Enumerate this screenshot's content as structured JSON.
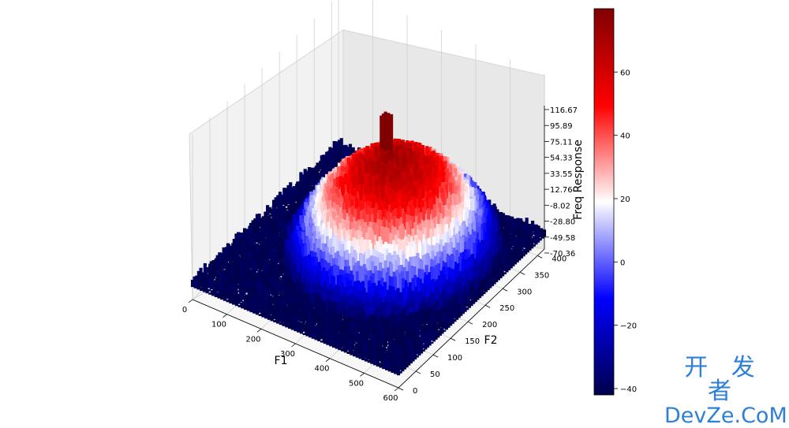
{
  "chart_data": {
    "type": "surface3d",
    "title": "",
    "xlabel": "F1",
    "ylabel": "F2",
    "zlabel": "Freq Response",
    "x_ticks": [
      0,
      100,
      200,
      300,
      400,
      500,
      600
    ],
    "y_ticks": [
      0,
      50,
      100,
      150,
      200,
      250,
      300,
      350,
      400
    ],
    "z_ticks": [
      "116.67",
      "95.89",
      "75.11",
      "54.33",
      "33.55",
      "12.76",
      "-8.02",
      "-28.80",
      "-49.58",
      "-70.36"
    ],
    "xlim": [
      0,
      600
    ],
    "ylim": [
      0,
      420
    ],
    "zlim": [
      -70.36,
      116.67
    ],
    "surface_peak": 80,
    "surface_floor": -45,
    "colormap": "seismic",
    "colorbar": {
      "ticks": [
        60,
        40,
        20,
        0,
        -20,
        -40
      ],
      "tick_labels": [
        "60",
        "40",
        "20",
        "0",
        "−20",
        "−40"
      ],
      "range": [
        -42,
        80
      ]
    },
    "grid": true
  },
  "watermark": {
    "line1": "开 发 者",
    "line2": "DevZe.CoM"
  },
  "colors": {
    "cmap_low": "#00004c",
    "cmap_blue": "#0000ff",
    "cmap_mid": "#ffffff",
    "cmap_red": "#ff0000",
    "cmap_high": "#800000",
    "watermark": "#2e7fd8"
  }
}
